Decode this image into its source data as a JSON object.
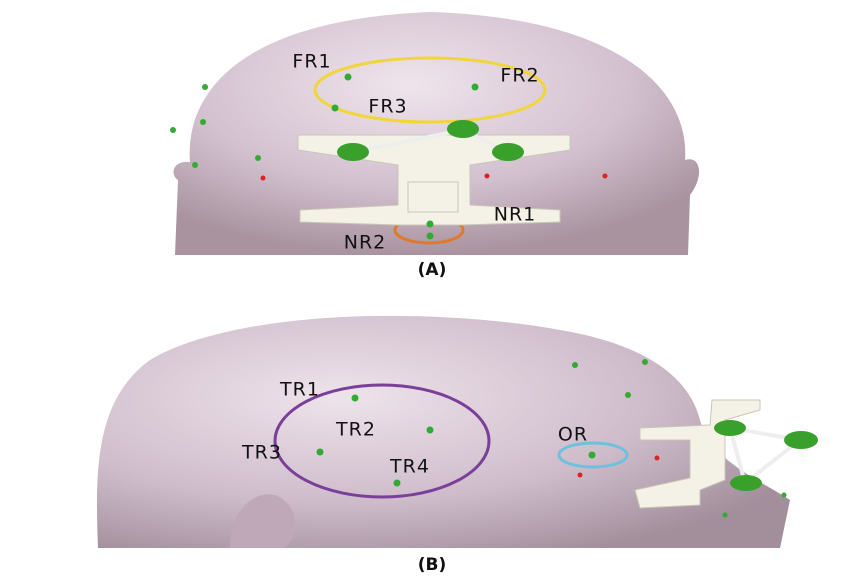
{
  "panels": [
    {
      "caption": "(A)",
      "labels": [
        "FR1",
        "FR2",
        "FR3",
        "NR1",
        "NR2"
      ]
    },
    {
      "caption": "(B)",
      "labels": [
        "TR1",
        "TR2",
        "TR3",
        "TR4",
        "OR"
      ]
    }
  ]
}
